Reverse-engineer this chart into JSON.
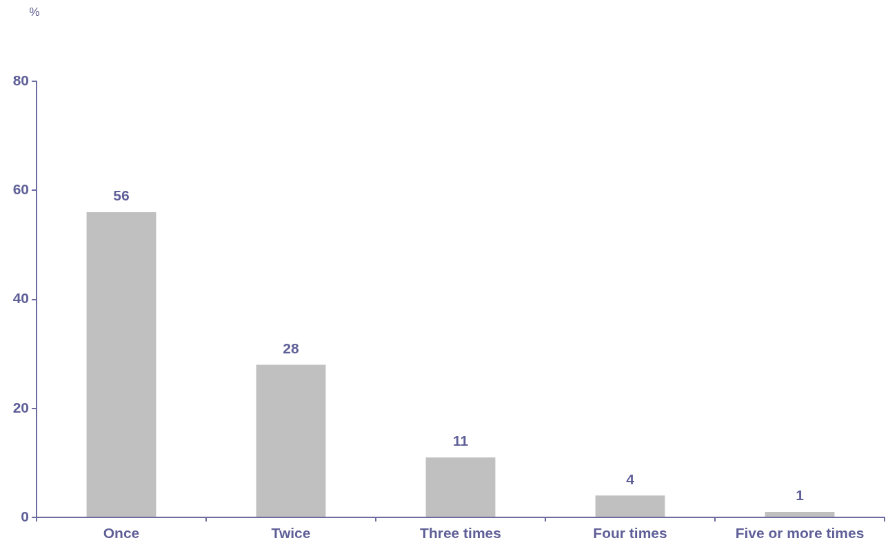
{
  "chart_data": {
    "type": "bar",
    "ylabel": "%",
    "categories": [
      "Once",
      "Twice",
      "Three times",
      "Four times",
      "Five or more times"
    ],
    "values": [
      56,
      28,
      11,
      4,
      1
    ],
    "color": "#c0c0c0",
    "ylim": [
      0,
      80
    ],
    "yticks": [
      0,
      20,
      40,
      60,
      80
    ],
    "grid": false,
    "legend": false,
    "data_labels": true
  }
}
